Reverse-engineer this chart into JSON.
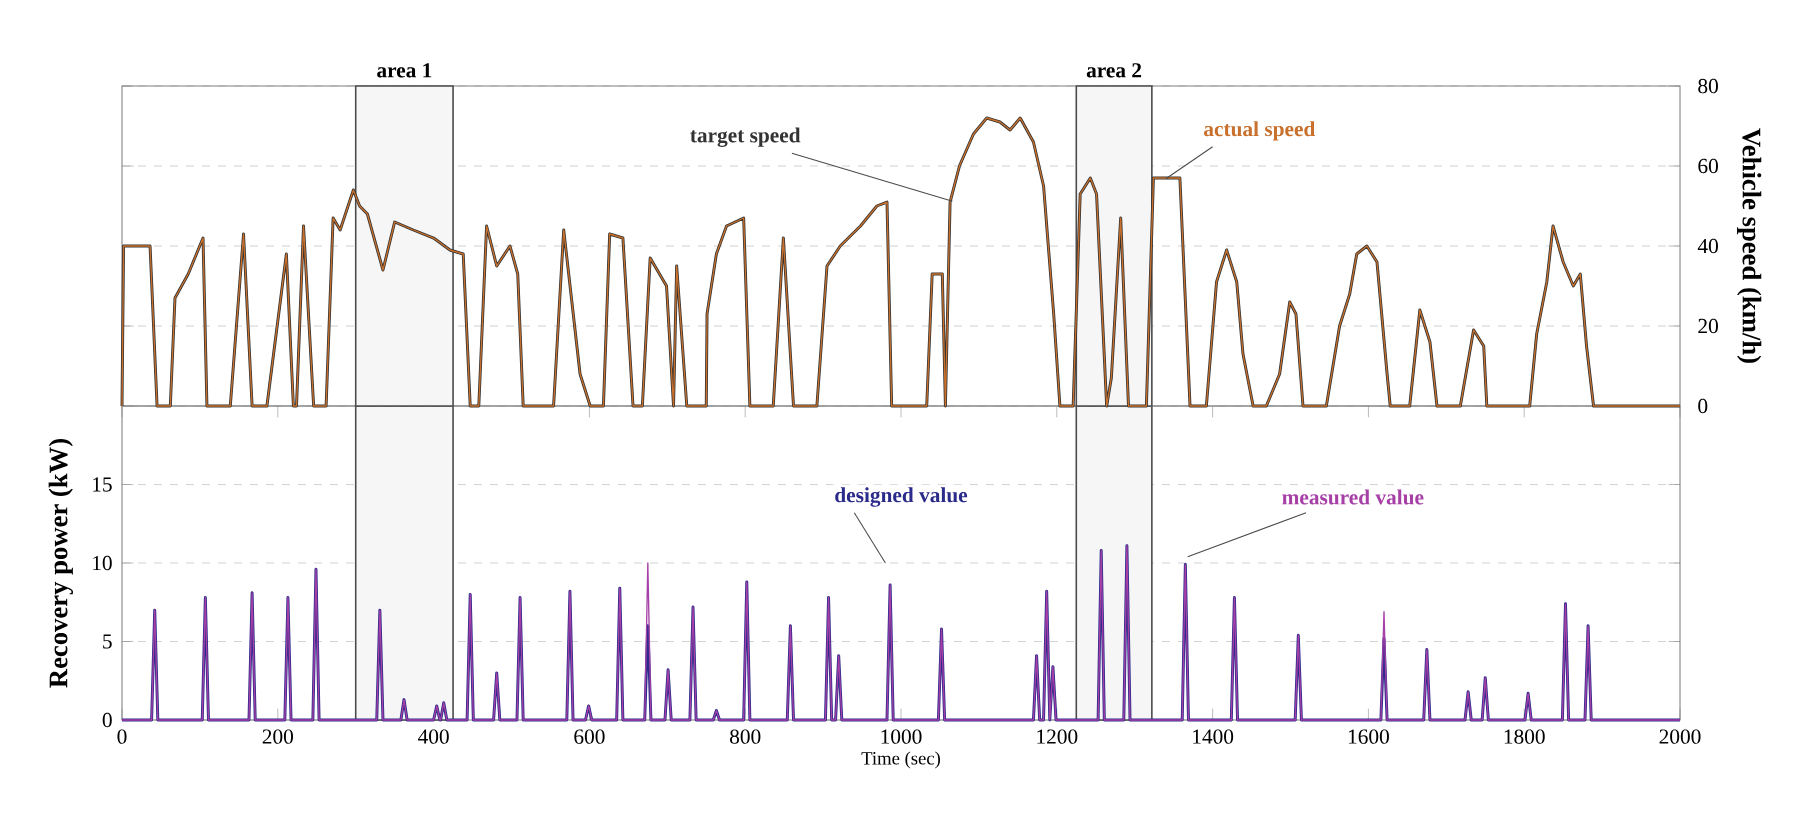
{
  "chart_data": [
    {
      "type": "line",
      "ylabel": "Vehicle speed (km/h)",
      "xlim": [
        0,
        2000
      ],
      "ylim": [
        0,
        80
      ],
      "yticks": [
        0,
        20,
        40,
        60,
        80
      ],
      "grid": "y",
      "tick_labels": "y",
      "bands": [
        {
          "axis": "x",
          "from": 300,
          "to": 425,
          "label": "area 1",
          "color": "#f6f6f6"
        },
        {
          "axis": "x",
          "from": 1225,
          "to": 1322,
          "label": "area 2",
          "color": "#f6f6f6"
        }
      ],
      "series": [
        {
          "name": "target speed",
          "color": "#333333",
          "x": [
            0,
            2,
            36,
            45,
            62,
            68,
            85,
            104,
            109,
            139,
            156,
            167,
            186,
            211,
            220,
            224,
            233,
            246,
            262,
            271,
            280,
            297,
            305,
            315,
            335,
            350,
            374,
            400,
            421,
            438,
            447,
            458,
            468,
            481,
            498,
            508,
            515,
            554,
            567,
            588,
            601,
            618,
            626,
            643,
            656,
            668,
            678,
            699,
            708,
            712,
            725,
            750,
            751,
            763,
            776,
            798,
            806,
            836,
            849,
            862,
            892,
            905,
            922,
            948,
            969,
            982,
            988,
            1033,
            1040,
            1053,
            1057,
            1063,
            1075,
            1093,
            1110,
            1127,
            1140,
            1153,
            1170,
            1183,
            1196,
            1204,
            1221,
            1230,
            1243,
            1251,
            1264,
            1270,
            1282,
            1292,
            1315,
            1324,
            1341,
            1358,
            1371,
            1392,
            1405,
            1418,
            1431,
            1439,
            1452,
            1469,
            1486,
            1499,
            1507,
            1516,
            1546,
            1563,
            1576,
            1585,
            1598,
            1611,
            1624,
            1628,
            1653,
            1666,
            1679,
            1688,
            1718,
            1735,
            1748,
            1752,
            1807,
            1816,
            1829,
            1837,
            1850,
            1863,
            1872,
            1880,
            1889,
            2000
          ],
          "values": [
            0,
            40,
            40,
            0,
            0,
            27,
            33,
            42,
            0,
            0,
            43,
            0,
            0,
            38,
            0,
            0,
            45,
            0,
            0,
            47,
            44,
            54,
            50,
            48,
            34,
            46,
            44,
            42,
            39,
            38,
            0,
            0,
            45,
            35,
            40,
            33,
            0,
            0,
            44,
            8,
            0,
            0,
            43,
            42,
            0,
            0,
            37,
            30,
            0,
            35,
            0,
            0,
            23,
            38,
            45,
            47,
            0,
            0,
            42,
            0,
            0,
            35,
            40,
            45,
            50,
            51,
            0,
            0,
            33,
            33,
            0,
            51,
            60,
            68,
            72,
            71,
            69,
            72,
            66,
            55,
            23,
            0,
            0,
            53,
            57,
            53,
            0,
            7,
            47,
            0,
            0,
            57,
            57,
            57,
            0,
            0,
            31,
            39,
            31,
            13,
            0,
            0,
            8,
            26,
            23,
            0,
            0,
            20,
            28,
            38,
            40,
            36,
            8,
            0,
            0,
            24,
            16,
            0,
            0,
            19,
            15,
            0,
            0,
            18,
            31,
            45,
            36,
            30,
            33,
            15,
            0,
            0
          ]
        },
        {
          "name": "actual speed",
          "color": "#c8702c",
          "x": [
            0,
            2,
            36,
            45,
            62,
            68,
            85,
            104,
            109,
            139,
            156,
            167,
            186,
            211,
            220,
            224,
            233,
            246,
            262,
            271,
            280,
            297,
            305,
            315,
            335,
            350,
            374,
            400,
            421,
            438,
            447,
            458,
            468,
            481,
            498,
            508,
            515,
            554,
            567,
            588,
            601,
            618,
            626,
            643,
            656,
            668,
            678,
            699,
            708,
            712,
            725,
            750,
            751,
            763,
            776,
            798,
            806,
            836,
            849,
            862,
            892,
            905,
            922,
            948,
            969,
            982,
            988,
            1033,
            1040,
            1053,
            1057,
            1063,
            1075,
            1093,
            1110,
            1127,
            1140,
            1153,
            1170,
            1183,
            1196,
            1204,
            1221,
            1230,
            1243,
            1251,
            1264,
            1270,
            1282,
            1292,
            1315,
            1324,
            1341,
            1358,
            1371,
            1392,
            1405,
            1418,
            1431,
            1439,
            1452,
            1469,
            1486,
            1499,
            1507,
            1516,
            1546,
            1563,
            1576,
            1585,
            1598,
            1611,
            1624,
            1628,
            1653,
            1666,
            1679,
            1688,
            1718,
            1735,
            1748,
            1752,
            1807,
            1816,
            1829,
            1837,
            1850,
            1863,
            1872,
            1880,
            1889,
            2000
          ],
          "values": [
            0,
            40,
            40,
            0,
            0,
            27,
            33,
            42,
            0,
            0,
            43,
            0,
            0,
            38,
            0,
            0,
            45,
            0,
            0,
            47,
            44,
            54,
            50,
            48,
            34,
            46,
            44,
            42,
            39,
            38,
            0,
            0,
            45,
            35,
            40,
            33,
            0,
            0,
            44,
            8,
            0,
            0,
            43,
            42,
            0,
            0,
            37,
            30,
            0,
            35,
            0,
            0,
            23,
            38,
            45,
            47,
            0,
            0,
            42,
            0,
            0,
            35,
            40,
            45,
            50,
            51,
            0,
            0,
            33,
            33,
            0,
            51,
            60,
            68,
            72,
            71,
            69,
            72,
            66,
            55,
            23,
            0,
            0,
            53,
            57,
            53,
            0,
            7,
            47,
            0,
            0,
            57,
            57,
            57,
            0,
            0,
            31,
            39,
            31,
            13,
            0,
            0,
            8,
            26,
            23,
            0,
            0,
            20,
            28,
            38,
            40,
            36,
            8,
            0,
            0,
            24,
            16,
            0,
            0,
            19,
            15,
            0,
            0,
            18,
            31,
            45,
            36,
            30,
            33,
            15,
            0,
            0
          ]
        }
      ]
    },
    {
      "type": "line",
      "xlabel": "Time (sec)",
      "ylabel": "Recovery power (kW)",
      "xlim": [
        0,
        2000
      ],
      "ylim": [
        0,
        20
      ],
      "xticks": [
        0,
        200,
        400,
        600,
        800,
        1000,
        1200,
        1400,
        1600,
        1800,
        2000
      ],
      "yticks": [
        0,
        5,
        10,
        15
      ],
      "grid": "y",
      "bands": [
        {
          "axis": "x",
          "from": 300,
          "to": 425,
          "color": "#f6f6f6"
        },
        {
          "axis": "x",
          "from": 1225,
          "to": 1322,
          "color": "#f6f6f6"
        }
      ],
      "series": [
        {
          "name": "designed value",
          "color": "#2b2b8c",
          "x": [
            0,
            38,
            42,
            46,
            103,
            107,
            111,
            163,
            167,
            171,
            209,
            213,
            217,
            245,
            249,
            253,
            327,
            331,
            335,
            358,
            362,
            366,
            400,
            404,
            408,
            409,
            413,
            417,
            443,
            447,
            451,
            477,
            481,
            485,
            507,
            511,
            515,
            571,
            575,
            579,
            595,
            599,
            603,
            635,
            639,
            643,
            671,
            675,
            679,
            697,
            701,
            705,
            729,
            733,
            737,
            759,
            763,
            767,
            798,
            802,
            806,
            854,
            858,
            862,
            903,
            907,
            911,
            916,
            920,
            924,
            982,
            986,
            990,
            1048,
            1052,
            1056,
            1170,
            1174,
            1178,
            1183,
            1187,
            1191,
            1191,
            1195,
            1199,
            1253,
            1257,
            1261,
            1286,
            1290,
            1294,
            1361,
            1365,
            1369,
            1424,
            1428,
            1432,
            1506,
            1510,
            1514,
            1616,
            1620,
            1624,
            1671,
            1675,
            1679,
            1724,
            1728,
            1732,
            1746,
            1750,
            1754,
            1801,
            1805,
            1809,
            1849,
            1853,
            1857,
            1878,
            1882,
            1886,
            2000
          ],
          "values": [
            0,
            0,
            7.0,
            0,
            0,
            7.8,
            0,
            0,
            8.1,
            0,
            0,
            7.8,
            0,
            0,
            9.6,
            0,
            0,
            7.0,
            0,
            0,
            1.3,
            0,
            0,
            0.9,
            0,
            0,
            1.1,
            0,
            0,
            8.0,
            0,
            0,
            3.0,
            0,
            0,
            7.8,
            0,
            0,
            8.2,
            0,
            0,
            0.9,
            0,
            0,
            8.4,
            0,
            0,
            6.0,
            0,
            0,
            3.2,
            0,
            0,
            7.2,
            0,
            0,
            0.6,
            0,
            0,
            8.8,
            0,
            0,
            6.0,
            0,
            0,
            7.8,
            0,
            0,
            4.1,
            0,
            0,
            8.6,
            0,
            0,
            5.8,
            0,
            0,
            4.1,
            0,
            0,
            8.2,
            0,
            0,
            3.4,
            0,
            0,
            10.8,
            0,
            0,
            11.1,
            0,
            0,
            9.9,
            0,
            0,
            7.8,
            0,
            0,
            5.4,
            0,
            0,
            5.2,
            0,
            0,
            4.5,
            0,
            0,
            1.8,
            0,
            0,
            2.7,
            0,
            0,
            1.7,
            0,
            0,
            7.4,
            0,
            0,
            6.0,
            0,
            0
          ]
        },
        {
          "name": "measured value",
          "color": "#a63fa6",
          "x": [
            0,
            38,
            42,
            46,
            103,
            107,
            111,
            163,
            167,
            171,
            209,
            213,
            217,
            245,
            249,
            253,
            327,
            331,
            335,
            358,
            362,
            366,
            400,
            404,
            408,
            409,
            413,
            417,
            443,
            447,
            451,
            477,
            481,
            485,
            507,
            511,
            515,
            571,
            575,
            579,
            595,
            599,
            603,
            635,
            639,
            643,
            671,
            675,
            679,
            697,
            701,
            705,
            729,
            733,
            737,
            759,
            763,
            767,
            798,
            802,
            806,
            854,
            858,
            862,
            903,
            907,
            911,
            916,
            920,
            924,
            982,
            986,
            990,
            1048,
            1052,
            1056,
            1170,
            1174,
            1178,
            1183,
            1187,
            1191,
            1191,
            1195,
            1199,
            1253,
            1257,
            1261,
            1286,
            1290,
            1294,
            1361,
            1365,
            1369,
            1424,
            1428,
            1432,
            1506,
            1510,
            1514,
            1616,
            1620,
            1624,
            1671,
            1675,
            1679,
            1724,
            1728,
            1732,
            1746,
            1750,
            1754,
            1801,
            1805,
            1809,
            1849,
            1853,
            1857,
            1878,
            1882,
            1886,
            2000
          ],
          "values": [
            0,
            0,
            7.0,
            0,
            0,
            7.8,
            0,
            0,
            8.1,
            0,
            0,
            7.8,
            0,
            0,
            9.6,
            0,
            0,
            7.0,
            0,
            0,
            1.3,
            0,
            0,
            0.9,
            0,
            0,
            1.1,
            0,
            0,
            8.0,
            0,
            0,
            3.0,
            0,
            0,
            7.8,
            0,
            0,
            8.2,
            0,
            0,
            0.9,
            0,
            0,
            8.4,
            0,
            0,
            10.0,
            0,
            0,
            3.2,
            0,
            0,
            7.2,
            0,
            0,
            0.6,
            0,
            0,
            8.8,
            0,
            0,
            6.0,
            0,
            0,
            7.8,
            0,
            0,
            4.1,
            0,
            0,
            8.6,
            0,
            0,
            5.8,
            0,
            0,
            4.1,
            0,
            0,
            8.2,
            0,
            0,
            3.4,
            0,
            0,
            10.8,
            0,
            0,
            11.1,
            0,
            0,
            9.9,
            0,
            0,
            7.8,
            0,
            0,
            5.4,
            0,
            0,
            6.9,
            0,
            0,
            4.5,
            0,
            0,
            1.8,
            0,
            0,
            2.7,
            0,
            0,
            1.7,
            0,
            0,
            7.4,
            0,
            0,
            6.0,
            0,
            0
          ]
        }
      ]
    }
  ]
}
